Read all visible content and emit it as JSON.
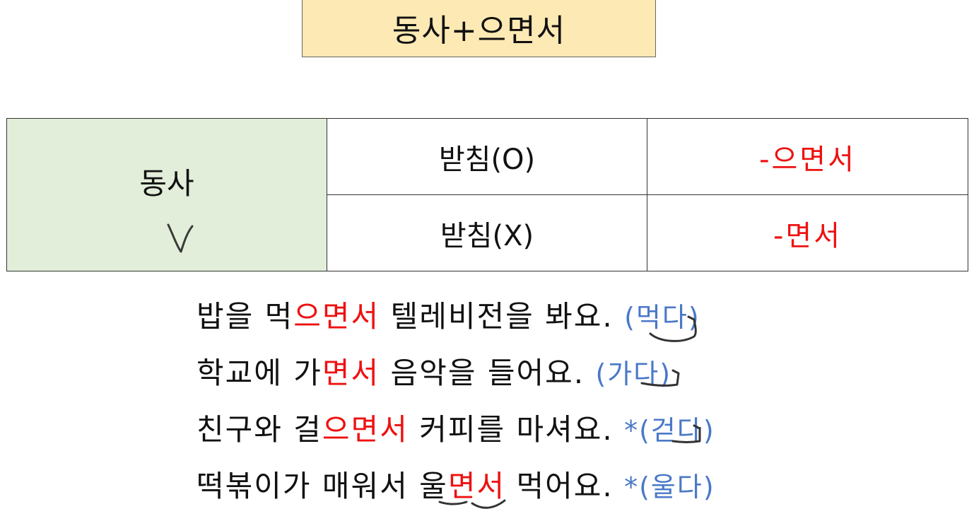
{
  "title": "동사+으면서",
  "table": {
    "category": "동사",
    "rows": [
      {
        "condition": "받침(O)",
        "form": "-으면서"
      },
      {
        "condition": "받침(X)",
        "form": "-면서"
      }
    ]
  },
  "examples": [
    {
      "before": "밥을 먹",
      "ending": "으면서",
      "after": " 텔레비전을 봐요. ",
      "base": "(먹다)"
    },
    {
      "before": "학교에 가",
      "ending": "면서",
      "after": " 음악을 들어요.  ",
      "base": "(가다)"
    },
    {
      "before": "친구와 걸",
      "ending": "으면서",
      "after": " 커피를 마셔요. ",
      "base": "*(걷다)"
    },
    {
      "before": "떡볶이가 매워서 울",
      "ending": "면서",
      "after": " 먹어요.  ",
      "base": "*(울다)"
    }
  ],
  "colors": {
    "title_bg": "#fde9b4",
    "verb_cell_bg": "#e2eed9",
    "ending_red": "#ee1111",
    "base_blue": "#4a78c8"
  }
}
